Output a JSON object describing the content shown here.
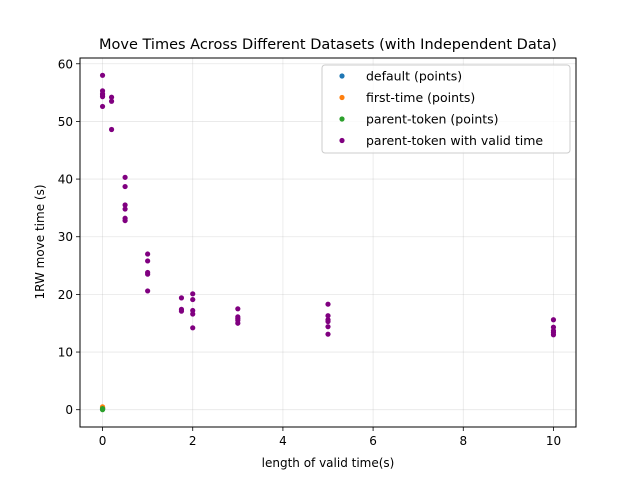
{
  "chart_data": {
    "type": "scatter",
    "title": "Move Times Across Different Datasets (with Independent Data)",
    "xlabel": "length of valid time(s)",
    "ylabel": "1RW move time (s)",
    "xlim": [
      -0.5,
      10.5
    ],
    "ylim": [
      -3,
      61
    ],
    "xticks": [
      0,
      2,
      4,
      6,
      8,
      10
    ],
    "yticks": [
      0,
      10,
      20,
      30,
      40,
      50,
      60
    ],
    "grid": true,
    "legend_position": "top-right",
    "series": [
      {
        "name": "default (points)",
        "color": "#1f77b4",
        "x": [
          0,
          0,
          0
        ],
        "y": [
          0.1,
          0.2,
          0.3
        ]
      },
      {
        "name": "first-time (points)",
        "color": "#ff7f0e",
        "x": [
          0,
          0,
          0
        ],
        "y": [
          0.4,
          0.5,
          0.3
        ]
      },
      {
        "name": "parent-token (points)",
        "color": "#2ca02c",
        "x": [
          0,
          0,
          0
        ],
        "y": [
          0.0,
          0.1,
          0.2
        ]
      },
      {
        "name": "parent-token with valid time",
        "color": "#800080",
        "x": [
          0,
          0,
          0,
          0,
          0,
          0,
          0.2,
          0.2,
          0.2,
          0.5,
          0.5,
          0.5,
          0.5,
          0.5,
          0.5,
          1,
          1,
          1,
          1,
          1,
          1.75,
          1.75,
          1.75,
          2,
          2,
          2,
          2,
          2,
          3,
          3,
          3,
          3,
          3,
          5,
          5,
          5,
          5,
          5,
          5,
          10,
          10,
          10,
          10,
          10
        ],
        "y": [
          58.0,
          55.3,
          54.8,
          54.6,
          54.3,
          52.6,
          54.2,
          53.5,
          48.6,
          40.3,
          38.7,
          35.5,
          34.8,
          33.2,
          32.8,
          27.0,
          25.8,
          23.8,
          23.5,
          20.6,
          19.4,
          17.4,
          17.1,
          20.1,
          19.1,
          17.2,
          16.6,
          14.2,
          17.5,
          16.1,
          15.8,
          15.5,
          15.0,
          18.3,
          16.3,
          15.6,
          15.3,
          14.4,
          13.1,
          15.6,
          14.3,
          13.7,
          13.4,
          13.0
        ]
      }
    ]
  }
}
